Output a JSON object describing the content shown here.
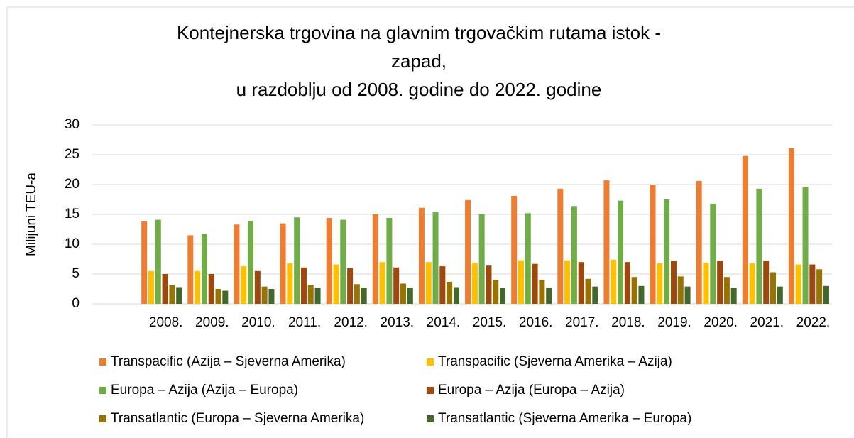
{
  "chart_data": {
    "type": "bar",
    "title": [
      "Kontejnerska trgovina na glavnim trgovačkim rutama istok -",
      "zapad,",
      "u razdoblju od 2008. godine do 2022. godine"
    ],
    "y_label": "Milijuni TEU-a",
    "categories": [
      null,
      "2008.",
      "2009.",
      "2010.",
      "2011.",
      "2012.",
      "2013.",
      "2014.",
      "2015.",
      "2016.",
      "2017.",
      "2018.",
      "2019.",
      "2020.",
      "2021.",
      "2022."
    ],
    "series": [
      {
        "name": "Transpacific (Azija – Sjeverna Amerika)",
        "color": "#ed7d31",
        "values": [
          null,
          13.8,
          11.5,
          13.3,
          13.5,
          14.4,
          15.0,
          16.1,
          17.4,
          18.1,
          19.3,
          20.7,
          19.9,
          20.6,
          24.8,
          26.1
        ]
      },
      {
        "name": "Transpacific (Sjeverna Amerika – Azija)",
        "color": "#ffc000",
        "values": [
          null,
          5.5,
          5.5,
          6.3,
          6.8,
          6.6,
          7.0,
          7.0,
          6.9,
          7.3,
          7.3,
          7.4,
          6.8,
          6.9,
          6.8,
          6.6
        ]
      },
      {
        "name": "Europa – Azija (Azija – Europa)",
        "color": "#70ad47",
        "values": [
          null,
          14.1,
          11.7,
          13.9,
          14.5,
          14.1,
          14.4,
          15.4,
          15.0,
          15.2,
          16.4,
          17.3,
          17.5,
          16.8,
          19.3,
          19.6
        ]
      },
      {
        "name": "Europa – Azija (Europa – Azija)",
        "color": "#9e480e",
        "values": [
          null,
          5.0,
          5.0,
          5.5,
          6.1,
          6.0,
          6.1,
          6.3,
          6.4,
          6.7,
          7.0,
          7.0,
          7.2,
          7.2,
          7.2,
          6.6
        ]
      },
      {
        "name": "Transatlantic (Europa – Sjeverna Amerika)",
        "color": "#997300",
        "values": [
          null,
          3.1,
          2.5,
          2.9,
          3.1,
          3.3,
          3.4,
          3.7,
          4.0,
          4.0,
          4.2,
          4.5,
          4.6,
          4.5,
          5.3,
          5.8
        ]
      },
      {
        "name": "Transatlantic (Sjeverna Amerika – Europa)",
        "color": "#43682b",
        "values": [
          null,
          2.8,
          2.2,
          2.5,
          2.7,
          2.7,
          2.7,
          2.8,
          2.7,
          2.7,
          2.9,
          3.0,
          2.9,
          2.7,
          2.9,
          3.0
        ]
      }
    ],
    "ylim": [
      0,
      30
    ],
    "yticks": [
      0,
      5,
      10,
      15,
      20,
      25,
      30
    ],
    "grid": true,
    "legend": "bottom"
  }
}
